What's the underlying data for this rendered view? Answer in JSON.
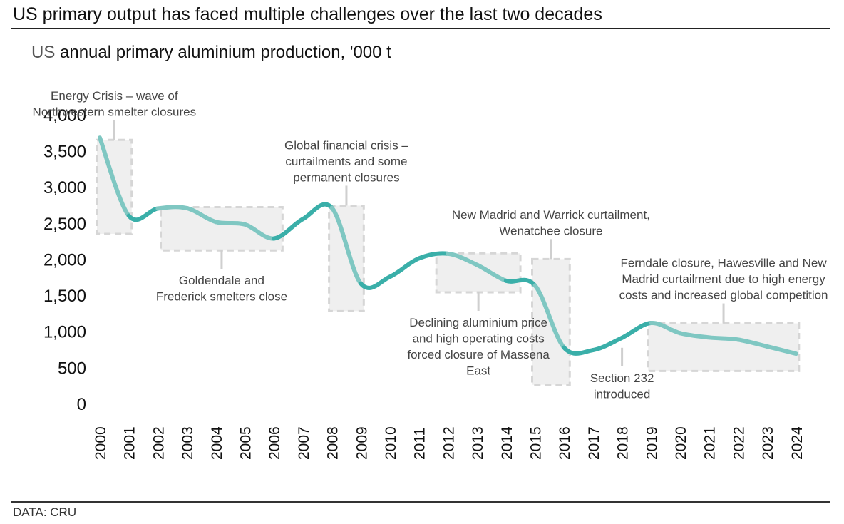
{
  "header": {
    "headline": "US primary output has faced multiple challenges over the last two decades",
    "subtitle_prefix": "US",
    "subtitle_rest": " annual primary aluminium production, '000 t"
  },
  "footer": {
    "source": "DATA: CRU"
  },
  "colors": {
    "line_dark": "#3aafa9",
    "line_light": "#7fc7c2",
    "box_fill": "#efefef",
    "box_stroke": "#d6d6d6",
    "leader": "#cfcfcf"
  },
  "chart_data": {
    "type": "line",
    "title": "US annual primary aluminium production, '000 t",
    "xlabel": "",
    "ylabel": "",
    "values_are_estimated": true,
    "values_note": "Values read from curve pixel positions; the chart has no data labels.",
    "x": [
      2000,
      2001,
      2002,
      2003,
      2004,
      2005,
      2006,
      2007,
      2008,
      2009,
      2010,
      2011,
      2012,
      2013,
      2014,
      2015,
      2016,
      2017,
      2018,
      2019,
      2020,
      2021,
      2022,
      2023,
      2024
    ],
    "series": [
      {
        "name": "US primary aluminium production",
        "values": [
          3680,
          2600,
          2700,
          2705,
          2515,
          2480,
          2285,
          2555,
          2710,
          1660,
          1755,
          2010,
          2075,
          1920,
          1700,
          1635,
          775,
          740,
          910,
          1115,
          975,
          915,
          885,
          790,
          690
        ]
      }
    ],
    "ylim": [
      0,
      4000
    ],
    "yticks": [
      0,
      500,
      1000,
      1500,
      2000,
      2500,
      3000,
      3500,
      4000
    ],
    "ytick_labels": [
      "0",
      "500",
      "1,000",
      "1,500",
      "2,000",
      "2,500",
      "3,000",
      "3,500",
      "4,000"
    ],
    "xtick_labels": [
      "2000",
      "2001",
      "2002",
      "2003",
      "2004",
      "2005",
      "2006",
      "2007",
      "2008",
      "2009",
      "2010",
      "2011",
      "2012",
      "2013",
      "2014",
      "2015",
      "2016",
      "2017",
      "2018",
      "2019",
      "2020",
      "2021",
      "2022",
      "2023",
      "2024"
    ],
    "grid": false,
    "legend": "none",
    "annotations": [
      {
        "id": "energy-crisis",
        "lines": [
          "Energy Crisis – wave of",
          "Northwestern smelter closures"
        ],
        "x_range": [
          2000,
          2001
        ],
        "box_y": [
          2350,
          3650
        ],
        "label_position": "above"
      },
      {
        "id": "goldendale",
        "lines": [
          "Goldendale and",
          "Frederick smelters close"
        ],
        "x_range": [
          2002.2,
          2006.2
        ],
        "box_y": [
          2120,
          2720
        ],
        "label_position": "below"
      },
      {
        "id": "gfc",
        "lines": [
          "Global financial crisis –",
          "curtailments and some",
          "permanent closures"
        ],
        "x_range": [
          2008,
          2009
        ],
        "box_y": [
          1280,
          2740
        ],
        "label_position": "above"
      },
      {
        "id": "massena",
        "lines": [
          "Declining aluminium price",
          "and high operating costs",
          "forced closure of Massena",
          "East"
        ],
        "x_range": [
          2011.7,
          2014.4
        ],
        "box_y": [
          1540,
          2080
        ],
        "label_position": "below"
      },
      {
        "id": "new-madrid",
        "lines": [
          "New Madrid and Warrick curtailment,",
          "Wenatchee closure"
        ],
        "x_range": [
          2015,
          2016.1
        ],
        "box_y": [
          260,
          2000
        ],
        "label_position": "above"
      },
      {
        "id": "section-232",
        "lines": [
          "Section 232",
          "introduced"
        ],
        "x_at": 2018,
        "label_position": "below"
      },
      {
        "id": "ferndale",
        "lines": [
          "Ferndale closure, Hawesville and New",
          "Madrid curtailment due to high energy",
          "costs and increased global competition"
        ],
        "x_range": [
          2019,
          2024
        ],
        "box_y": [
          450,
          1110
        ],
        "label_position": "above"
      }
    ]
  }
}
